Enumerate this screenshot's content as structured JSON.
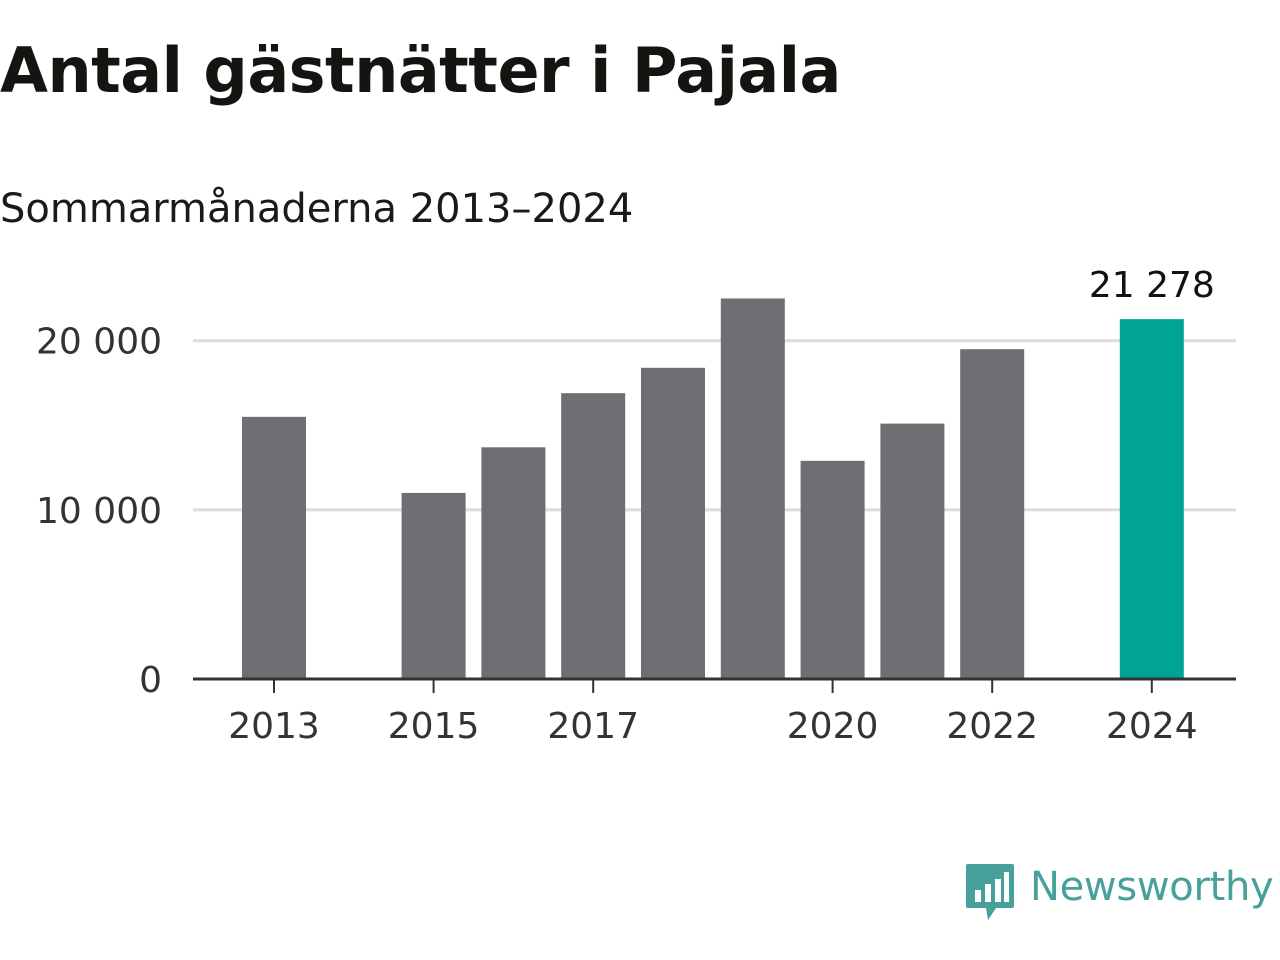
{
  "header": {
    "title": "Antal gästnätter i Pajala",
    "subtitle": "Sommarmånaderna 2013–2024"
  },
  "brand": {
    "name": "Newsworthy",
    "icon": "newsworthy-logo-icon",
    "color": "#47a09a"
  },
  "chart_data": {
    "type": "bar",
    "title": "Antal gästnätter i Pajala",
    "subtitle": "Sommarmånaderna 2013–2024",
    "categories": [
      "2013",
      "2014",
      "2015",
      "2016",
      "2017",
      "2018",
      "2019",
      "2020",
      "2021",
      "2022",
      "2023",
      "2024"
    ],
    "values": [
      15500,
      null,
      11000,
      13700,
      16900,
      18400,
      22500,
      12900,
      15100,
      19500,
      null,
      21278
    ],
    "xtick_labels": [
      "2013",
      "",
      "2015",
      "",
      "2017",
      "",
      "",
      "2020",
      "",
      "2022",
      "",
      "2024"
    ],
    "yticks": [
      0,
      10000,
      20000
    ],
    "ytick_labels": [
      "0",
      "10 000",
      "20 000"
    ],
    "ylim": [
      0,
      23000
    ],
    "grid": true,
    "highlight_index": 11,
    "highlight_label": "21 278",
    "colors": {
      "bar": "#6f6e73",
      "highlight": "#00a396",
      "grid": "#dcdcdc",
      "axis": "#333333"
    },
    "xlabel": "",
    "ylabel": ""
  }
}
